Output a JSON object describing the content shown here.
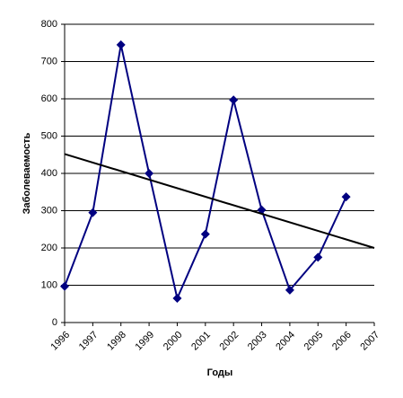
{
  "chart_data": {
    "type": "line",
    "x_label": "Годы",
    "y_label": "Заболеваемость",
    "categories": [
      "1996",
      "1997",
      "1998",
      "1999",
      "2000",
      "2001",
      "2002",
      "2003",
      "2004",
      "2005",
      "2006",
      "2007"
    ],
    "series": [
      {
        "color": "#000080",
        "values": [
          97,
          295,
          745,
          400,
          65,
          237,
          597,
          302,
          87,
          175,
          337,
          null
        ]
      }
    ],
    "trend": {
      "values": [
        452,
        200
      ],
      "color": "#000000"
    },
    "ylim": [
      0,
      800
    ],
    "yticks": [
      0,
      100,
      200,
      300,
      400,
      500,
      600,
      700,
      800
    ],
    "grid": true
  }
}
